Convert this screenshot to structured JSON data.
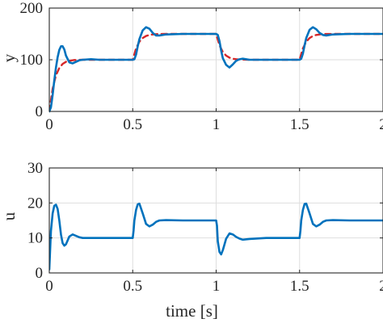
{
  "chart_data": [
    {
      "type": "line",
      "ylabel": "y",
      "xlabel": "",
      "xlim": [
        0,
        2
      ],
      "ylim": [
        0,
        200
      ],
      "xticks": [
        0,
        0.5,
        1,
        1.5,
        2
      ],
      "xtick_labels": [
        "0",
        "0.5",
        "1",
        "1.5",
        "2"
      ],
      "yticks": [
        0,
        100,
        200
      ],
      "ytick_labels": [
        "0",
        "100",
        "200"
      ],
      "grid": true,
      "series": [
        {
          "color": "#d62728",
          "style": "dashed",
          "x": [
            0,
            0.02,
            0.04,
            0.06,
            0.08,
            0.1,
            0.12,
            0.15,
            0.2,
            0.3,
            0.5,
            0.52,
            0.54,
            0.56,
            0.58,
            0.6,
            0.62,
            0.65,
            0.7,
            0.8,
            1.0,
            1.02,
            1.04,
            1.06,
            1.08,
            1.1,
            1.12,
            1.15,
            1.2,
            1.3,
            1.5,
            1.52,
            1.54,
            1.56,
            1.58,
            1.6,
            1.62,
            1.65,
            1.7,
            1.8,
            2.0
          ],
          "values": [
            0,
            44,
            70,
            84,
            92,
            96,
            98,
            99.5,
            100,
            100,
            100,
            122,
            135,
            142,
            146,
            148,
            149,
            149.8,
            150,
            150,
            150,
            128,
            115,
            108,
            104,
            102,
            101,
            100.3,
            100,
            100,
            100,
            122,
            135,
            142,
            146,
            148,
            149,
            149.8,
            150,
            150,
            150
          ]
        },
        {
          "color": "#0072bd",
          "style": "solid",
          "x": [
            0,
            0.01,
            0.02,
            0.03,
            0.04,
            0.05,
            0.06,
            0.07,
            0.08,
            0.09,
            0.1,
            0.12,
            0.14,
            0.16,
            0.18,
            0.2,
            0.25,
            0.3,
            0.4,
            0.5,
            0.51,
            0.52,
            0.53,
            0.54,
            0.56,
            0.58,
            0.6,
            0.62,
            0.64,
            0.66,
            0.7,
            0.8,
            1.0,
            1.01,
            1.02,
            1.03,
            1.04,
            1.06,
            1.08,
            1.1,
            1.12,
            1.14,
            1.16,
            1.2,
            1.3,
            1.5,
            1.51,
            1.52,
            1.53,
            1.54,
            1.56,
            1.58,
            1.6,
            1.62,
            1.64,
            1.66,
            1.7,
            1.8,
            2.0
          ],
          "values": [
            0,
            8,
            32,
            60,
            85,
            105,
            119,
            126,
            126,
            120,
            108,
            95,
            93,
            96,
            99,
            100,
            101,
            100,
            100,
            100,
            101,
            110,
            126,
            140,
            157,
            163,
            160,
            152,
            147,
            147,
            149,
            150,
            150,
            148,
            136,
            118,
            103,
            90,
            85,
            91,
            98,
            101,
            102,
            100,
            100,
            100,
            102,
            112,
            128,
            142,
            158,
            163,
            159,
            152,
            148,
            147,
            149,
            150,
            150
          ]
        }
      ]
    },
    {
      "type": "line",
      "ylabel": "u",
      "xlabel": "time [s]",
      "xlim": [
        0,
        2
      ],
      "ylim": [
        0,
        30
      ],
      "xticks": [
        0,
        0.5,
        1,
        1.5,
        2
      ],
      "xtick_labels": [
        "0",
        "0.5",
        "1",
        "1.5",
        "2"
      ],
      "yticks": [
        0,
        10,
        20,
        30
      ],
      "ytick_labels": [
        "0",
        "10",
        "20",
        "30"
      ],
      "grid": true,
      "series": [
        {
          "color": "#0072bd",
          "style": "solid",
          "x": [
            0,
            0.01,
            0.02,
            0.03,
            0.04,
            0.05,
            0.06,
            0.07,
            0.08,
            0.09,
            0.1,
            0.12,
            0.14,
            0.16,
            0.18,
            0.2,
            0.3,
            0.4,
            0.5,
            0.505,
            0.51,
            0.52,
            0.53,
            0.54,
            0.56,
            0.58,
            0.6,
            0.62,
            0.64,
            0.66,
            0.7,
            0.8,
            1.0,
            1.005,
            1.01,
            1.02,
            1.03,
            1.04,
            1.06,
            1.08,
            1.1,
            1.12,
            1.14,
            1.16,
            1.2,
            1.3,
            1.5,
            1.505,
            1.51,
            1.52,
            1.53,
            1.54,
            1.56,
            1.58,
            1.6,
            1.62,
            1.64,
            1.66,
            1.7,
            1.8,
            2.0
          ],
          "values": [
            1,
            12,
            17,
            19.2,
            19.5,
            18.3,
            15,
            11,
            8.5,
            7.8,
            8.2,
            10.4,
            11,
            10.6,
            10.2,
            10,
            10,
            10,
            10,
            12,
            15,
            18,
            19.6,
            19.8,
            17,
            14,
            13.3,
            13.8,
            14.6,
            15,
            15.1,
            15,
            15,
            13.5,
            9,
            6,
            5.3,
            6.5,
            9.8,
            11.3,
            11,
            10.3,
            9.8,
            9.5,
            9.7,
            10,
            10,
            12,
            15,
            18,
            19.7,
            19.8,
            17,
            14,
            13.3,
            13.8,
            14.6,
            15,
            15.1,
            15,
            15
          ]
        }
      ]
    }
  ]
}
